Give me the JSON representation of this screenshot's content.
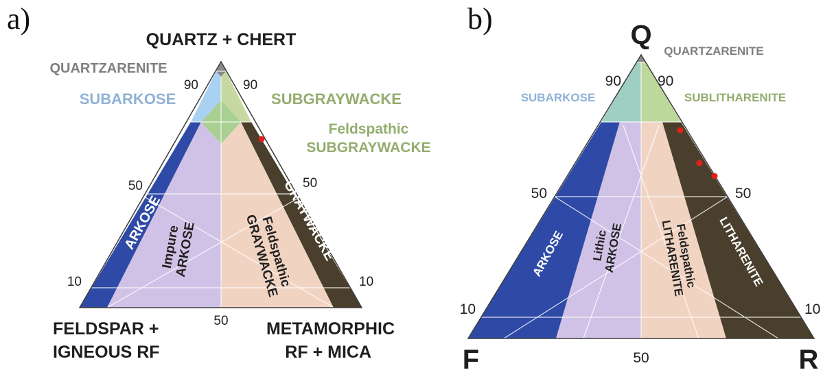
{
  "panel_a": {
    "panel_label": "a)",
    "apex_top": "QUARTZ + CHERT",
    "apex_left_line1": "FELDSPAR +",
    "apex_left_line2": "IGNEOUS RF",
    "apex_right_line1": "METAMORPHIC",
    "apex_right_line2": "RF + MICA",
    "ticks": {
      "left_90": "90",
      "right_90": "90",
      "left_50": "50",
      "right_50": "50",
      "left_10": "10",
      "right_10": "10",
      "bottom_50": "50"
    },
    "fields": {
      "quartzarenite": "QUARTZARENITE",
      "subarkose": "SUBARKOSE",
      "subgraywacke": "SUBGRAYWACKE",
      "feldspathic_subgraywacke_line1": "Feldspathic",
      "feldspathic_subgraywacke_line2": "SUBGRAYWACKE",
      "arkose": "ARKOSE",
      "impure_arkose_line1": "Impure",
      "impure_arkose_line2": "ARKOSE",
      "feldspathic_graywacke_line1": "Feldspathic",
      "feldspathic_graywacke_line2": "GRAYWACKE",
      "graywacke": "GRAYWACKE"
    }
  },
  "panel_b": {
    "panel_label": "b)",
    "apex_top": "Q",
    "apex_left": "F",
    "apex_right": "R",
    "ticks": {
      "left_90": "90",
      "right_90": "90",
      "left_50": "50",
      "right_50": "50",
      "left_10": "10",
      "right_10": "10",
      "bottom_50": "50"
    },
    "fields": {
      "quartzarenite": "QUARTZARENITE",
      "subarkose": "SUBARKOSE",
      "sublitharenite": "SUBLITHARENITE",
      "arkose": "ARKOSE",
      "lithic_arkose_line1": "Lithic",
      "lithic_arkose_line2": "ARKOSE",
      "feldspathic_litharenite_line1": "Feldspathic",
      "feldspathic_litharenite_line2": "LITHARENITE",
      "litharenite": "LITHARENITE"
    }
  },
  "colors": {
    "arkose_blue": "#2f4aa6",
    "subarkose_blue": "#a9d2f2",
    "lavender": "#cfc2e6",
    "peach": "#f1d3c2",
    "dark_brown": "#4a3f2c",
    "green": "#a9cf92",
    "quartz_gray": "#8a8a8a",
    "label_gray": "#7f7f7f",
    "label_blue": "#8fb2d6",
    "label_green": "#93ad6e",
    "sample_red": "#e0201b"
  }
}
